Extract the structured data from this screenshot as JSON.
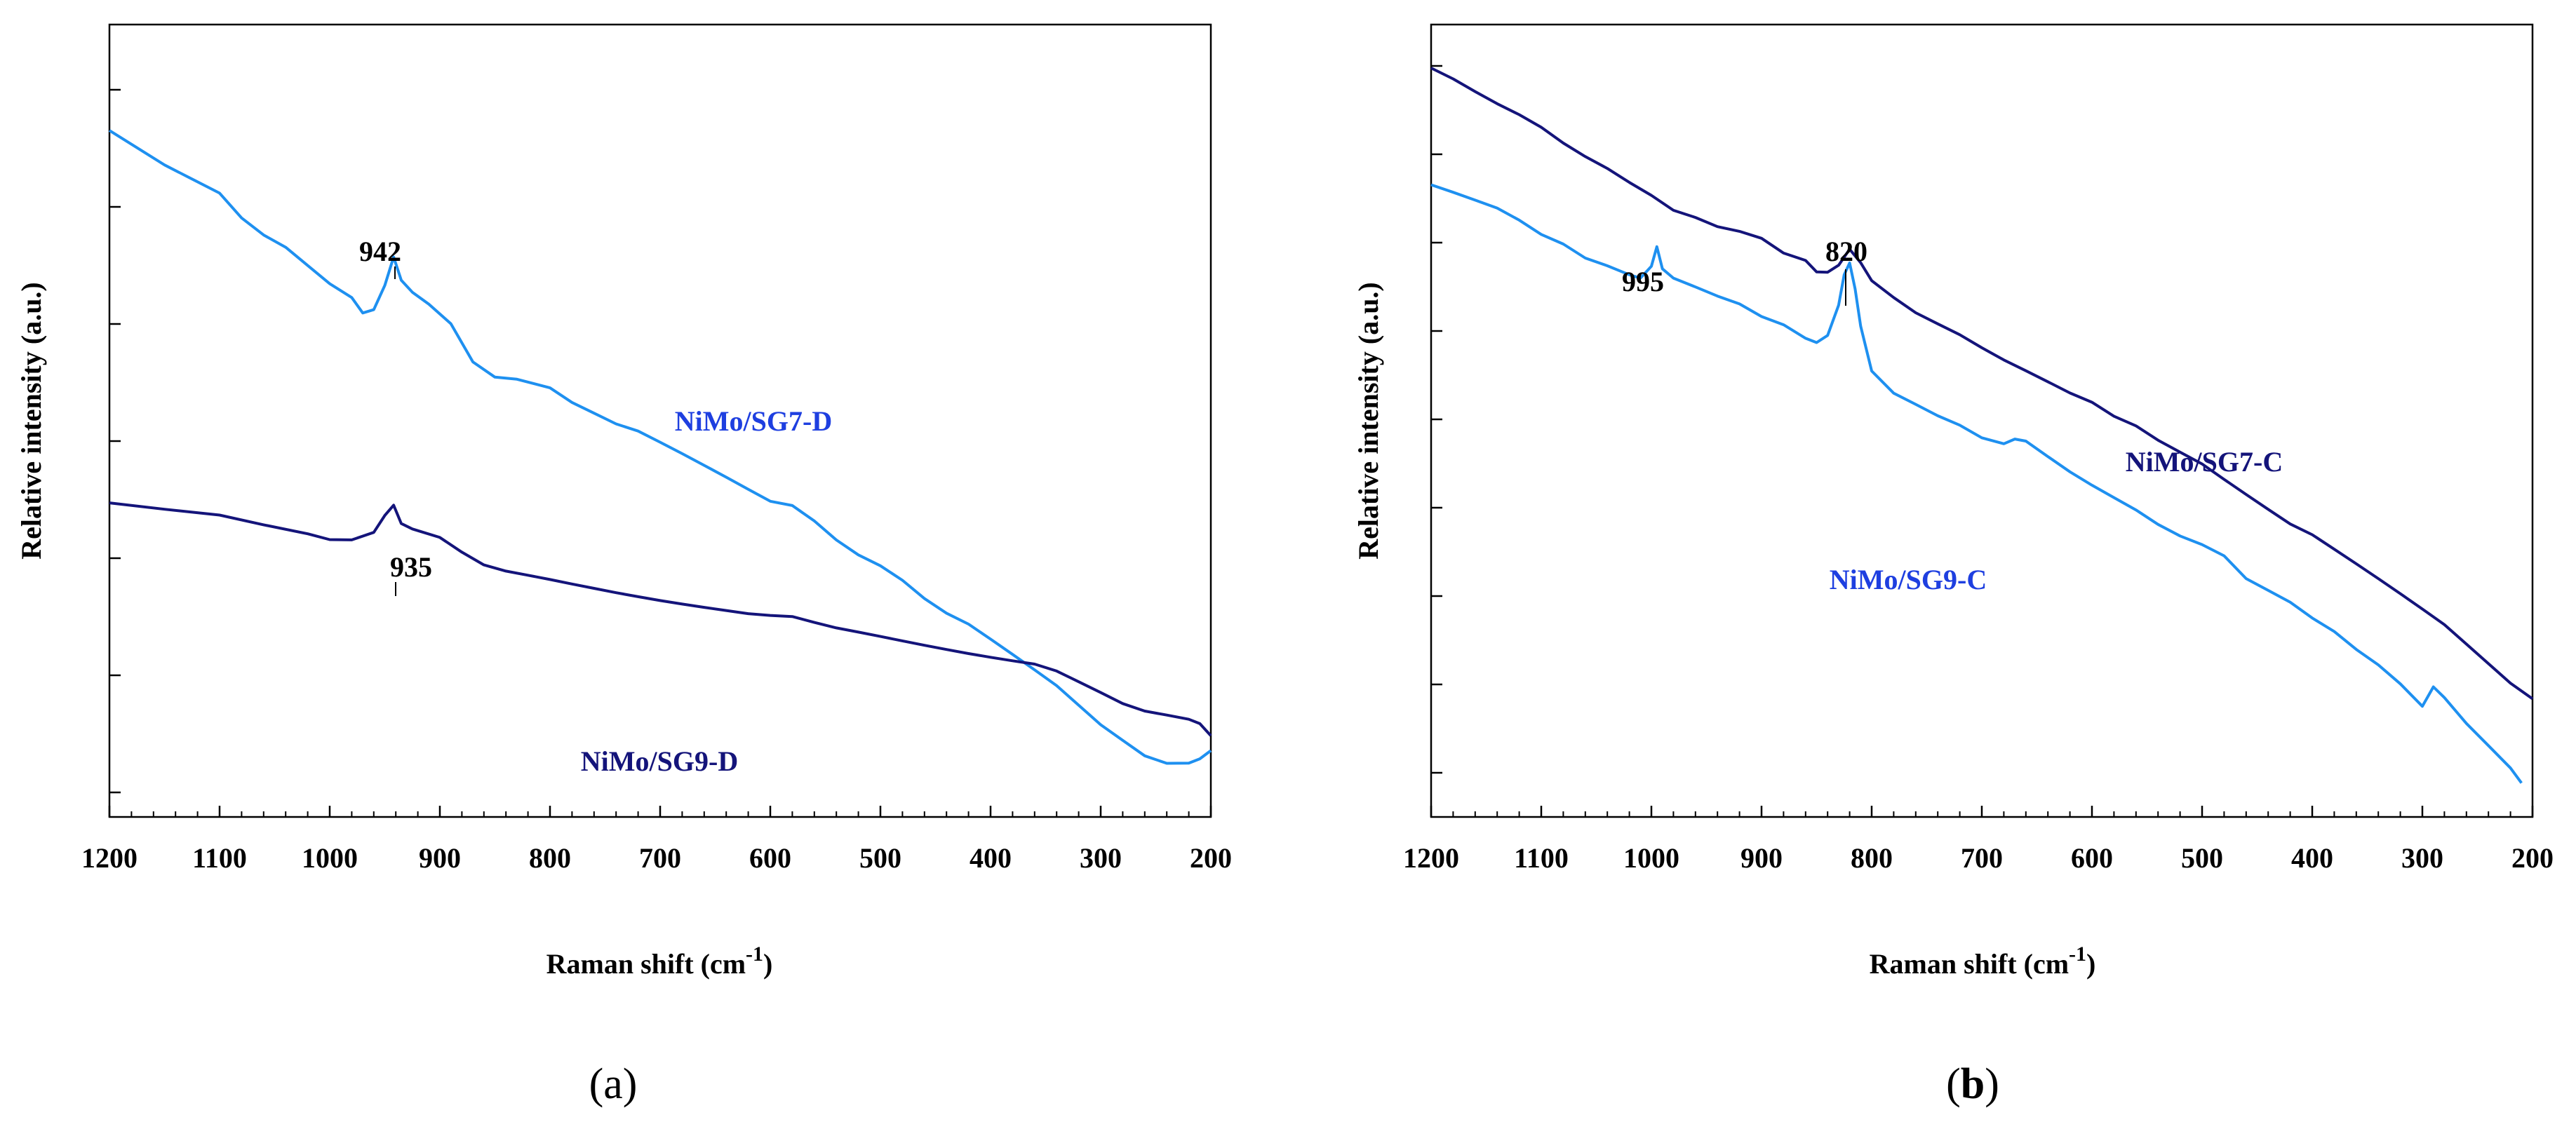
{
  "chart_data": [
    {
      "panel": "a",
      "panel_label": "a",
      "type": "line",
      "xlabel": "Raman shift (cm",
      "xlabel_sup": "-1",
      "ylabel": "Relative intensity (a.u.)",
      "xlim": [
        1200,
        200
      ],
      "x_reversed": true,
      "y_ticks_labeled": false,
      "x_ticks": [
        1200,
        1100,
        1000,
        900,
        800,
        700,
        600,
        500,
        400,
        300,
        200
      ],
      "grid": false,
      "series": [
        {
          "name": "NiMo/SG7-D",
          "color": "#1E90F0",
          "x": [
            1200,
            1150,
            1100,
            1080,
            1060,
            1040,
            1000,
            980,
            970,
            960,
            950,
            942,
            935,
            925,
            910,
            890,
            870,
            850,
            830,
            800,
            780,
            760,
            740,
            720,
            700,
            680,
            660,
            640,
            620,
            600,
            580,
            560,
            540,
            520,
            500,
            480,
            460,
            440,
            420,
            400,
            380,
            360,
            340,
            320,
            300,
            280,
            260,
            240,
            220,
            210,
            200
          ],
          "y": [
            0.88,
            0.835,
            0.798,
            0.765,
            0.742,
            0.725,
            0.676,
            0.657,
            0.636,
            0.64,
            0.672,
            0.71,
            0.68,
            0.665,
            0.65,
            0.625,
            0.575,
            0.555,
            0.552,
            0.54,
            0.52,
            0.505,
            0.49,
            0.48,
            0.465,
            0.45,
            0.435,
            0.42,
            0.405,
            0.39,
            0.385,
            0.365,
            0.34,
            0.32,
            0.305,
            0.285,
            0.26,
            0.24,
            0.225,
            0.205,
            0.185,
            0.165,
            0.145,
            0.12,
            0.095,
            0.075,
            0.055,
            0.045,
            0.045,
            0.05,
            0.06
          ]
        },
        {
          "name": "NiMo/SG9-D",
          "color": "#14147A",
          "x": [
            1200,
            1150,
            1100,
            1060,
            1020,
            1000,
            980,
            960,
            950,
            942,
            935,
            925,
            900,
            880,
            860,
            840,
            820,
            800,
            780,
            760,
            740,
            720,
            700,
            680,
            660,
            640,
            620,
            600,
            580,
            560,
            540,
            520,
            500,
            480,
            460,
            440,
            420,
            400,
            380,
            360,
            340,
            320,
            300,
            280,
            260,
            240,
            220,
            210,
            200
          ],
          "y": [
            0.385,
            0.377,
            0.37,
            0.358,
            0.347,
            0.34,
            0.34,
            0.35,
            0.372,
            0.385,
            0.36,
            0.352,
            0.34,
            0.32,
            0.303,
            0.295,
            0.29,
            0.285,
            0.28,
            0.275,
            0.27,
            0.265,
            0.26,
            0.255,
            0.25,
            0.245,
            0.24,
            0.237,
            0.235,
            0.227,
            0.22,
            0.215,
            0.21,
            0.205,
            0.2,
            0.195,
            0.19,
            0.185,
            0.18,
            0.175,
            0.165,
            0.15,
            0.135,
            0.12,
            0.11,
            0.105,
            0.1,
            0.095,
            0.08
          ]
        }
      ],
      "annotations": [
        {
          "text": "942",
          "x": 942
        },
        {
          "text": "935",
          "x": 935
        }
      ]
    },
    {
      "panel": "b",
      "panel_label": "b",
      "type": "line",
      "xlabel": "Raman shift (cm",
      "xlabel_sup": "-1",
      "ylabel": "Relative intensity (a.u.)",
      "xlim": [
        1200,
        200
      ],
      "x_reversed": true,
      "y_ticks_labeled": false,
      "x_ticks": [
        1200,
        1100,
        1000,
        900,
        800,
        700,
        600,
        500,
        400,
        300,
        200
      ],
      "grid": false,
      "series": [
        {
          "name": "NiMo/SG7-C",
          "color": "#14147A",
          "x": [
            1200,
            1180,
            1160,
            1140,
            1120,
            1100,
            1080,
            1060,
            1040,
            1020,
            1000,
            980,
            960,
            940,
            920,
            900,
            880,
            860,
            850,
            840,
            830,
            820,
            810,
            800,
            780,
            760,
            740,
            720,
            700,
            680,
            660,
            640,
            620,
            600,
            580,
            560,
            540,
            520,
            500,
            480,
            460,
            440,
            420,
            400,
            380,
            360,
            340,
            320,
            300,
            280,
            260,
            240,
            220,
            200
          ],
          "y": [
            0.96,
            0.945,
            0.928,
            0.912,
            0.898,
            0.882,
            0.862,
            0.845,
            0.83,
            0.812,
            0.795,
            0.775,
            0.765,
            0.752,
            0.745,
            0.735,
            0.715,
            0.705,
            0.69,
            0.69,
            0.7,
            0.722,
            0.705,
            0.682,
            0.66,
            0.64,
            0.625,
            0.61,
            0.592,
            0.575,
            0.56,
            0.545,
            0.53,
            0.518,
            0.5,
            0.488,
            0.47,
            0.455,
            0.44,
            0.42,
            0.4,
            0.38,
            0.36,
            0.345,
            0.325,
            0.305,
            0.285,
            0.265,
            0.245,
            0.225,
            0.2,
            0.175,
            0.15,
            0.13
          ]
        },
        {
          "name": "NiMo/SG9-C",
          "color": "#1E90F0",
          "x": [
            1200,
            1180,
            1160,
            1140,
            1120,
            1100,
            1080,
            1060,
            1040,
            1020,
            1010,
            1000,
            995,
            990,
            980,
            960,
            940,
            920,
            900,
            880,
            860,
            850,
            840,
            830,
            825,
            820,
            815,
            810,
            800,
            780,
            760,
            740,
            720,
            700,
            680,
            670,
            660,
            640,
            620,
            600,
            580,
            560,
            540,
            520,
            500,
            480,
            460,
            440,
            420,
            400,
            380,
            360,
            340,
            320,
            300,
            290,
            280,
            260,
            240,
            220,
            210
          ],
          "y": [
            0.805,
            0.795,
            0.785,
            0.775,
            0.76,
            0.742,
            0.73,
            0.712,
            0.702,
            0.69,
            0.685,
            0.7,
            0.725,
            0.695,
            0.682,
            0.67,
            0.658,
            0.648,
            0.632,
            0.622,
            0.605,
            0.6,
            0.61,
            0.65,
            0.69,
            0.705,
            0.67,
            0.62,
            0.56,
            0.53,
            0.515,
            0.5,
            0.488,
            0.472,
            0.465,
            0.472,
            0.47,
            0.45,
            0.43,
            0.412,
            0.395,
            0.378,
            0.358,
            0.342,
            0.33,
            0.315,
            0.285,
            0.27,
            0.255,
            0.235,
            0.218,
            0.195,
            0.175,
            0.15,
            0.12,
            0.145,
            0.13,
            0.095,
            0.065,
            0.035,
            0.015
          ]
        }
      ],
      "annotations": [
        {
          "text": "995",
          "x": 995
        },
        {
          "text": "820",
          "x": 820
        }
      ]
    }
  ]
}
